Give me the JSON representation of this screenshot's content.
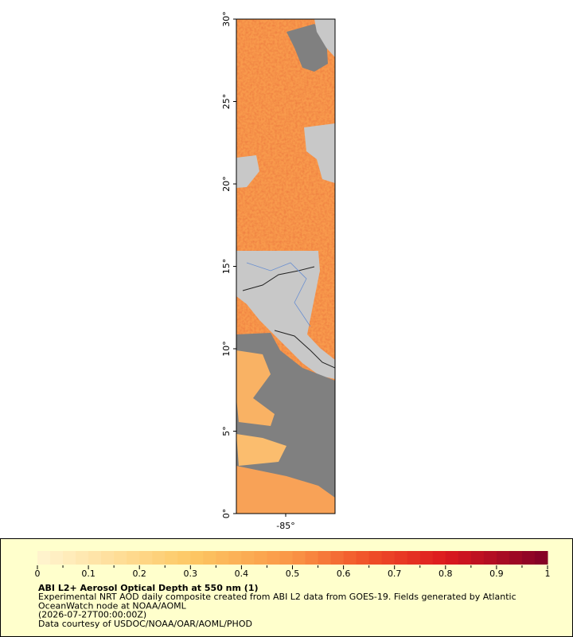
{
  "map": {
    "ylim": [
      0,
      30
    ],
    "yticks": [
      {
        "value": 0,
        "label": "0°"
      },
      {
        "value": 5,
        "label": "5°"
      },
      {
        "value": 10,
        "label": "10°"
      },
      {
        "value": 15,
        "label": "15°"
      },
      {
        "value": 20,
        "label": "20°"
      },
      {
        "value": 25,
        "label": "25°"
      },
      {
        "value": 30,
        "label": "30°"
      }
    ],
    "xlim": [
      -88,
      -82
    ],
    "xticks": [
      {
        "value": -85,
        "label": "-85°"
      }
    ]
  },
  "colorbar": {
    "range": [
      0,
      1
    ],
    "ticks": [
      0,
      0.1,
      0.2,
      0.3,
      0.4,
      0.5,
      0.6,
      0.7,
      0.8,
      0.9,
      1
    ]
  },
  "caption": {
    "title": "ABI L2+ Aerosol Optical Depth at 550 nm (1)",
    "lines": [
      "Experimental NRT AOD daily composite created from ABI L2 data from GOES-19. Fields generated by Atlantic",
      "OceanWatch node at NOAA/AOML",
      "(2026-07-27T00:00:00Z)",
      "Data courtesy of USDOC/NOAA/OAR/AOML/PHOD"
    ]
  }
}
